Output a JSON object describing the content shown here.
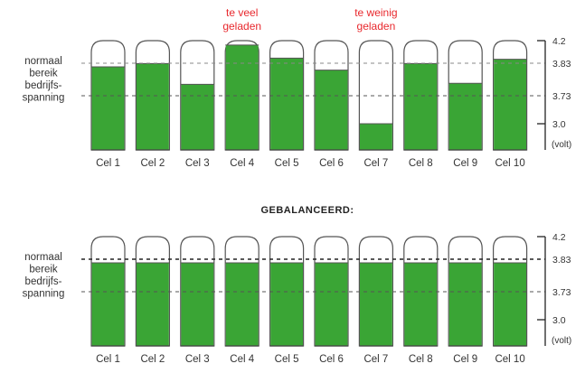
{
  "colors": {
    "fill": "#3aa535",
    "outline": "#555555",
    "warning_text": "#e8282d",
    "text": "#333333"
  },
  "range_label": [
    "normaal",
    "bereik",
    "bedrijfs-",
    "spanning"
  ],
  "scale": {
    "ticks": [
      "4.2",
      "3.83",
      "3.73",
      "3.0"
    ],
    "unit": "(volt)"
  },
  "cell_labels": [
    "Cel 1",
    "Cel 2",
    "Cel 3",
    "Cel 4",
    "Cel 5",
    "Cel 6",
    "Cel 7",
    "Cel 8",
    "Cel 9",
    "Cel 10"
  ],
  "panels": [
    {
      "title": "",
      "annotations": [
        {
          "cell": 4,
          "lines": [
            "te veel",
            "geladen"
          ]
        },
        {
          "cell": 7,
          "lines": [
            "te weinig",
            "geladen"
          ]
        }
      ],
      "fill_levels": [
        0.76,
        0.79,
        0.6,
        0.96,
        0.84,
        0.73,
        0.24,
        0.79,
        0.61,
        0.83
      ]
    },
    {
      "title": "GEBALANCEERD:",
      "annotations": [],
      "fill_levels": [
        0.76,
        0.76,
        0.76,
        0.76,
        0.76,
        0.76,
        0.76,
        0.76,
        0.76,
        0.76
      ]
    }
  ]
}
